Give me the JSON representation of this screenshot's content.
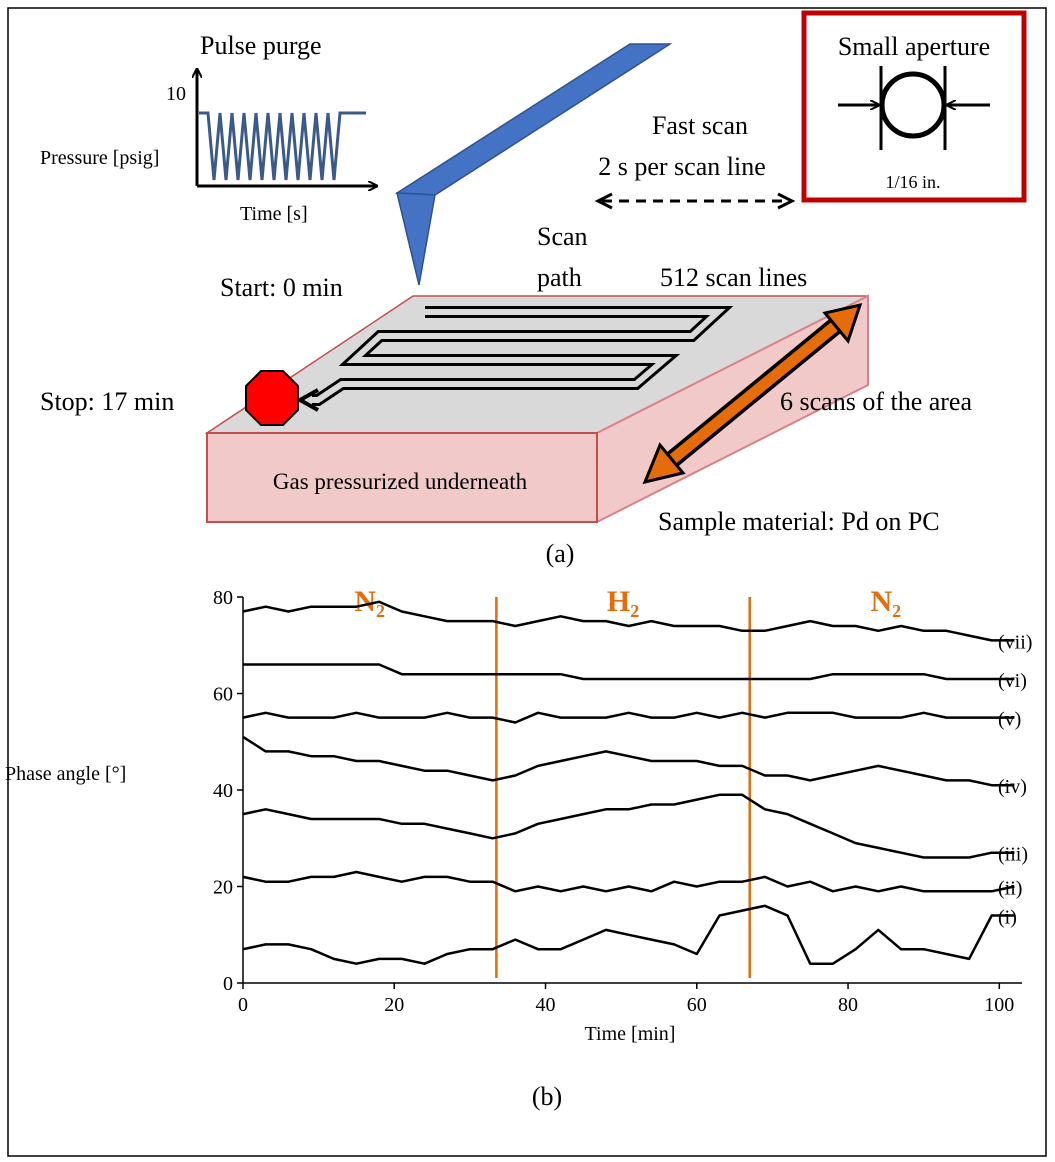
{
  "diagram": {
    "pulse_title": "Pulse purge",
    "pulse_tick": "10",
    "pulse_ylabel": "Pressure [psig]",
    "pulse_xlabel": "Time [s]",
    "fast_scan": "Fast scan",
    "scan_rate": "2 s per scan line",
    "aperture_title": "Small aperture",
    "aperture_size": "1/16 in.",
    "scan_path_1": "Scan",
    "scan_path_2": "path",
    "start": "Start: 0 min",
    "scan_lines": "512 scan lines",
    "stop": "Stop: 17 min",
    "scans": "6 scans of the area",
    "gas": "Gas pressurized underneath",
    "sample": "Sample material: Pd on PC",
    "caption": "(a)"
  },
  "chart_data": {
    "type": "line",
    "caption": "(b)",
    "xlabel": "Time [min]",
    "ylabel": "Phase angle [°]",
    "xlim": [
      0,
      103
    ],
    "ylim": [
      0,
      80
    ],
    "xticks": [
      0,
      20,
      40,
      60,
      80,
      100
    ],
    "yticks": [
      0,
      20,
      40,
      60,
      80
    ],
    "grid": false,
    "color": "#000000",
    "boundary_color": "#e46c0a",
    "boundaries": [
      33.5,
      67
    ],
    "regions": [
      "N₂",
      "H₂",
      "N₂"
    ],
    "x": [
      0,
      3,
      6,
      9,
      12,
      15,
      18,
      21,
      24,
      27,
      30,
      33,
      36,
      39,
      42,
      45,
      48,
      51,
      54,
      57,
      60,
      63,
      66,
      69,
      72,
      75,
      78,
      81,
      84,
      87,
      90,
      93,
      96,
      99,
      102
    ],
    "series": [
      {
        "name": "(i)",
        "values": [
          7,
          8,
          8,
          7,
          5,
          4,
          5,
          5,
          4,
          6,
          7,
          7,
          9,
          7,
          7,
          9,
          11,
          10,
          9,
          8,
          6,
          14,
          15,
          16,
          14,
          4,
          4,
          7,
          11,
          7,
          7,
          6,
          5,
          14,
          14
        ]
      },
      {
        "name": "(ii)",
        "values": [
          22,
          21,
          21,
          22,
          22,
          23,
          22,
          21,
          22,
          22,
          21,
          21,
          19,
          20,
          19,
          20,
          19,
          20,
          19,
          21,
          20,
          21,
          21,
          22,
          20,
          21,
          19,
          20,
          19,
          20,
          19,
          19,
          19,
          19,
          20
        ]
      },
      {
        "name": "(iii)",
        "values": [
          35,
          36,
          35,
          34,
          34,
          34,
          34,
          33,
          33,
          32,
          31,
          30,
          31,
          33,
          34,
          35,
          36,
          36,
          37,
          37,
          38,
          39,
          39,
          36,
          35,
          33,
          31,
          29,
          28,
          27,
          26,
          26,
          26,
          27,
          27
        ]
      },
      {
        "name": "(iv)",
        "values": [
          51,
          48,
          48,
          47,
          47,
          46,
          46,
          45,
          44,
          44,
          43,
          42,
          43,
          45,
          46,
          47,
          48,
          47,
          46,
          46,
          46,
          45,
          45,
          43,
          43,
          42,
          43,
          44,
          45,
          44,
          43,
          42,
          42,
          41,
          41
        ]
      },
      {
        "name": "(v)",
        "values": [
          55,
          56,
          55,
          55,
          55,
          56,
          55,
          55,
          55,
          56,
          55,
          55,
          54,
          56,
          55,
          55,
          55,
          56,
          55,
          55,
          56,
          55,
          56,
          55,
          56,
          56,
          56,
          55,
          55,
          55,
          56,
          55,
          55,
          55,
          55
        ]
      },
      {
        "name": "(vi)",
        "values": [
          66,
          66,
          66,
          66,
          66,
          66,
          66,
          64,
          64,
          64,
          64,
          64,
          64,
          64,
          64,
          63,
          63,
          63,
          63,
          63,
          63,
          63,
          63,
          63,
          63,
          63,
          64,
          64,
          64,
          64,
          64,
          63,
          63,
          63,
          63
        ]
      },
      {
        "name": "(vii)",
        "values": [
          77,
          78,
          77,
          78,
          78,
          78,
          79,
          77,
          76,
          75,
          75,
          75,
          74,
          75,
          76,
          75,
          75,
          74,
          75,
          74,
          74,
          74,
          73,
          73,
          74,
          75,
          74,
          74,
          73,
          74,
          73,
          73,
          72,
          71,
          71
        ]
      }
    ]
  }
}
